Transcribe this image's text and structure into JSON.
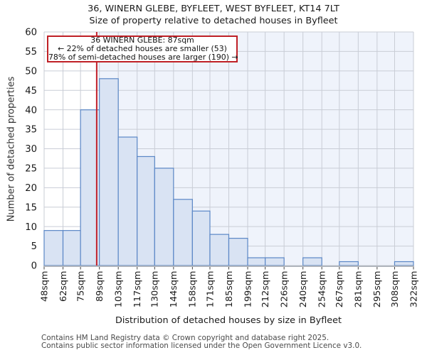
{
  "title": "36, WINERN GLEBE, BYFLEET, WEST BYFLEET, KT14 7LT",
  "subtitle": "Size of property relative to detached houses in Byfleet",
  "annotation": {
    "line1": "36 WINERN GLEBE: 87sqm",
    "line2": "← 22% of detached houses are smaller (53)",
    "line3": "78% of semi-detached houses are larger (190) →"
  },
  "footer": {
    "line1": "Contains HM Land Registry data © Crown copyright and database right 2025.",
    "line2": "Contains public sector information licensed under the Open Government Licence v3.0."
  },
  "chart_data": {
    "type": "bar",
    "title": "Size of property relative to detached houses in Byfleet",
    "xlabel": "Distribution of detached houses by size in Byfleet",
    "ylabel": "Number of detached properties",
    "bin_edges_sqm": [
      48,
      62,
      75,
      89,
      103,
      117,
      130,
      144,
      158,
      171,
      185,
      199,
      212,
      226,
      240,
      254,
      267,
      281,
      295,
      308,
      322
    ],
    "bin_labels": [
      "48sqm",
      "62sqm",
      "75sqm",
      "89sqm",
      "103sqm",
      "117sqm",
      "130sqm",
      "144sqm",
      "158sqm",
      "171sqm",
      "185sqm",
      "199sqm",
      "212sqm",
      "226sqm",
      "240sqm",
      "254sqm",
      "267sqm",
      "281sqm",
      "295sqm",
      "308sqm",
      "322sqm"
    ],
    "values": [
      9,
      9,
      40,
      48,
      33,
      28,
      25,
      17,
      14,
      8,
      7,
      2,
      2,
      0,
      2,
      0,
      1,
      0,
      0,
      1
    ],
    "ylim": [
      0,
      60
    ],
    "yticks": [
      0,
      5,
      10,
      15,
      20,
      25,
      30,
      35,
      40,
      45,
      50,
      55,
      60
    ],
    "marker_value_sqm": 87,
    "grid": true,
    "legend": "none",
    "colors": {
      "bar_fill": "#d9e3f3",
      "bar_stroke": "#5b87c6",
      "grid": "#c9cdd6",
      "shade": "#eff3fb",
      "marker_line": "#c2202a",
      "annotation_border": "#bf2026",
      "axis_line": "#b0b5bd",
      "tick": "#444444",
      "text": "#1a1a1a"
    }
  }
}
